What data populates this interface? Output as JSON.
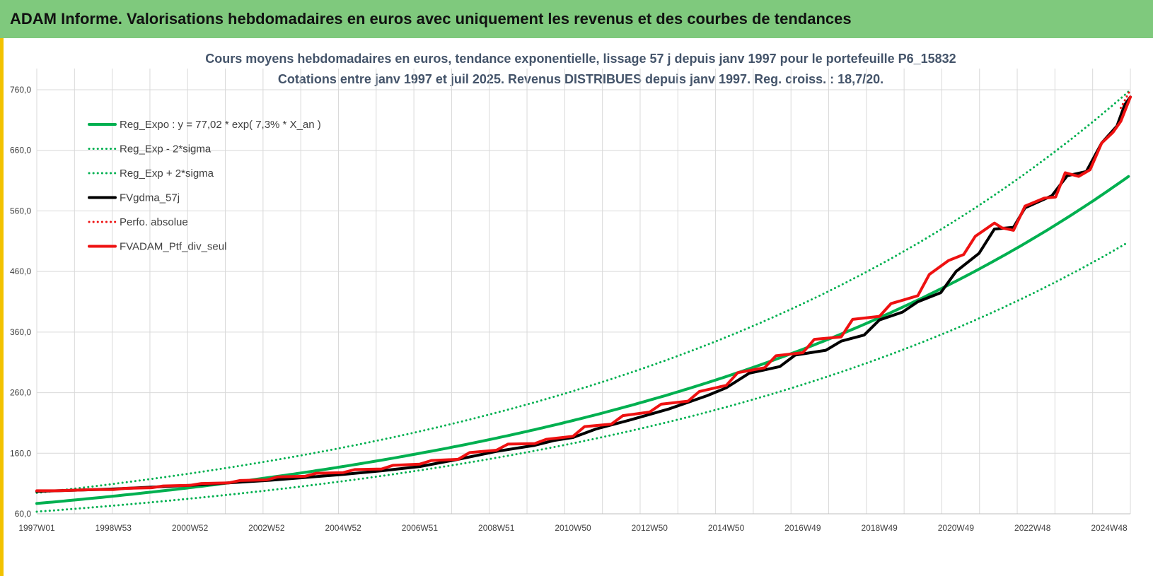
{
  "header": {
    "title": "ADAM Informe. Valorisations hebdomadaires en euros avec uniquement les revenus et des courbes de tendances"
  },
  "colors": {
    "header_bg": "#7fc97d",
    "frame_accent": "#f2c200",
    "reg_expo": "#00b050",
    "fvgdma": "#000000",
    "fvadam": "#ee1111",
    "title_text": "#44546a"
  },
  "chart_data": {
    "type": "line",
    "title_line1": "Cours moyens hebdomadaires  en euros, tendance exponentielle, lissage 57 j depuis janv 1997 pour le portefeuille P6_15832",
    "title_line2": "Cotations  entre janv 1997 et juil 2025. Revenus DISTRIBUES depuis janv 1997. Reg. croiss. : 18,7/20.",
    "ylim": [
      60,
      760
    ],
    "yticks": [
      "60,0",
      "160,0",
      "260,0",
      "360,0",
      "460,0",
      "560,0",
      "660,0",
      "760,0"
    ],
    "xticks": [
      "1997W01",
      "1998W53",
      "2000W52",
      "2002W52",
      "2004W52",
      "2006W51",
      "2008W51",
      "2010W50",
      "2012W50",
      "2014W50",
      "2016W49",
      "2018W49",
      "2020W49",
      "2022W48",
      "2024W48"
    ],
    "xrange_years": [
      1997.0,
      2025.55
    ],
    "grid": true,
    "legend_position": "top-left",
    "series": [
      {
        "name": "Reg_Expo : y = 77,02 * exp( 7,3% *  X_an )",
        "style": "solid",
        "color": "#00b050",
        "width": 4,
        "formula": {
          "a": 77.02,
          "r": 0.073
        }
      },
      {
        "name": "Reg_Exp - 2*sigma",
        "style": "dotted",
        "color": "#00b050",
        "width": 3,
        "formula": {
          "a": 63.5,
          "r": 0.073
        }
      },
      {
        "name": "Reg_Exp + 2*sigma",
        "style": "dotted",
        "color": "#00b050",
        "width": 3,
        "formula": {
          "a": 94.5,
          "r": 0.073
        }
      },
      {
        "name": "FVgdma_57j",
        "style": "solid",
        "color": "#000000",
        "width": 4,
        "points": [
          [
            1997.0,
            97
          ],
          [
            1998.0,
            99
          ],
          [
            1999.0,
            101
          ],
          [
            2000.0,
            104
          ],
          [
            2001.0,
            107
          ],
          [
            2002.0,
            111
          ],
          [
            2003.0,
            115
          ],
          [
            2004.0,
            120
          ],
          [
            2005.0,
            125
          ],
          [
            2006.0,
            131
          ],
          [
            2007.0,
            138
          ],
          [
            2008.0,
            150
          ],
          [
            2009.0,
            163
          ],
          [
            2010.0,
            173
          ],
          [
            2010.5,
            181
          ],
          [
            2011.0,
            186
          ],
          [
            2011.6,
            200
          ],
          [
            2012.5,
            215
          ],
          [
            2013.5,
            233
          ],
          [
            2014.5,
            255
          ],
          [
            2015.0,
            268
          ],
          [
            2015.6,
            292
          ],
          [
            2016.4,
            303
          ],
          [
            2016.8,
            322
          ],
          [
            2017.6,
            330
          ],
          [
            2018.0,
            345
          ],
          [
            2018.6,
            355
          ],
          [
            2019.0,
            380
          ],
          [
            2019.6,
            393
          ],
          [
            2020.0,
            410
          ],
          [
            2020.6,
            425
          ],
          [
            2021.0,
            460
          ],
          [
            2021.6,
            490
          ],
          [
            2022.0,
            530
          ],
          [
            2022.5,
            533
          ],
          [
            2022.8,
            565
          ],
          [
            2023.5,
            585
          ],
          [
            2023.9,
            618
          ],
          [
            2024.4,
            625
          ],
          [
            2024.8,
            672
          ],
          [
            2025.2,
            700
          ],
          [
            2025.4,
            735
          ],
          [
            2025.55,
            748
          ]
        ]
      },
      {
        "name": "Perfo. absolue",
        "style": "dotted",
        "color": "#ee1111",
        "width": 3,
        "points": [
          [
            2025.3,
            730
          ],
          [
            2025.45,
            748
          ],
          [
            2025.55,
            760
          ]
        ]
      },
      {
        "name": "FVADAM_Ptf_div_seul",
        "style": "solid",
        "color": "#ee1111",
        "width": 4,
        "points": [
          [
            1997.0,
            98
          ],
          [
            1997.5,
            98
          ],
          [
            1998.0,
            99
          ],
          [
            1998.5,
            100
          ],
          [
            1999.0,
            100
          ],
          [
            1999.3,
            102
          ],
          [
            2000.0,
            103
          ],
          [
            2000.3,
            106
          ],
          [
            2001.0,
            107
          ],
          [
            2001.3,
            110
          ],
          [
            2002.0,
            111
          ],
          [
            2002.3,
            115
          ],
          [
            2003.0,
            116
          ],
          [
            2003.3,
            121
          ],
          [
            2004.0,
            122
          ],
          [
            2004.3,
            127
          ],
          [
            2005.0,
            128
          ],
          [
            2005.3,
            133
          ],
          [
            2006.0,
            134
          ],
          [
            2006.3,
            140
          ],
          [
            2007.0,
            142
          ],
          [
            2007.3,
            148
          ],
          [
            2008.0,
            150
          ],
          [
            2008.3,
            161
          ],
          [
            2009.0,
            165
          ],
          [
            2009.3,
            175
          ],
          [
            2010.0,
            176
          ],
          [
            2010.3,
            183
          ],
          [
            2011.0,
            188
          ],
          [
            2011.3,
            204
          ],
          [
            2012.0,
            208
          ],
          [
            2012.3,
            222
          ],
          [
            2013.0,
            228
          ],
          [
            2013.3,
            241
          ],
          [
            2014.0,
            246
          ],
          [
            2014.3,
            262
          ],
          [
            2015.0,
            272
          ],
          [
            2015.3,
            293
          ],
          [
            2016.0,
            301
          ],
          [
            2016.3,
            321
          ],
          [
            2017.0,
            326
          ],
          [
            2017.3,
            348
          ],
          [
            2018.0,
            352
          ],
          [
            2018.3,
            381
          ],
          [
            2019.0,
            386
          ],
          [
            2019.3,
            407
          ],
          [
            2020.0,
            420
          ],
          [
            2020.3,
            455
          ],
          [
            2020.8,
            478
          ],
          [
            2021.2,
            488
          ],
          [
            2021.5,
            518
          ],
          [
            2022.0,
            540
          ],
          [
            2022.2,
            532
          ],
          [
            2022.5,
            528
          ],
          [
            2022.8,
            568
          ],
          [
            2023.3,
            581
          ],
          [
            2023.6,
            583
          ],
          [
            2023.85,
            623
          ],
          [
            2024.2,
            617
          ],
          [
            2024.5,
            628
          ],
          [
            2024.8,
            672
          ],
          [
            2025.1,
            690
          ],
          [
            2025.3,
            708
          ],
          [
            2025.55,
            748
          ]
        ]
      }
    ]
  }
}
